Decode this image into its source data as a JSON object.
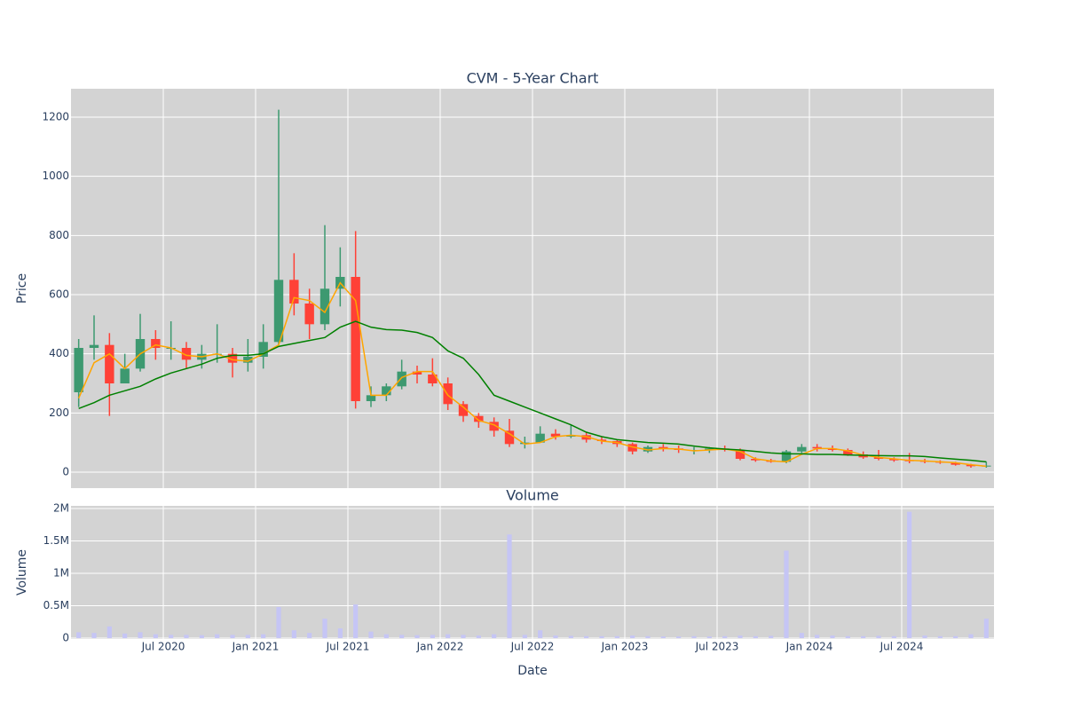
{
  "chart_data": [
    {
      "type": "candlestick",
      "title": "CVM - 5-Year Chart",
      "ylabel": "Price",
      "x": [
        "2020-01",
        "2020-02",
        "2020-03",
        "2020-04",
        "2020-05",
        "2020-06",
        "2020-07",
        "2020-08",
        "2020-09",
        "2020-10",
        "2020-11",
        "2020-12",
        "2021-01",
        "2021-02",
        "2021-03",
        "2021-04",
        "2021-05",
        "2021-06",
        "2021-07",
        "2021-08",
        "2021-09",
        "2021-10",
        "2021-11",
        "2021-12",
        "2022-01",
        "2022-02",
        "2022-03",
        "2022-04",
        "2022-05",
        "2022-06",
        "2022-07",
        "2022-08",
        "2022-09",
        "2022-10",
        "2022-11",
        "2022-12",
        "2023-01",
        "2023-02",
        "2023-03",
        "2023-04",
        "2023-05",
        "2023-06",
        "2023-07",
        "2023-08",
        "2023-09",
        "2023-10",
        "2023-11",
        "2023-12",
        "2024-01",
        "2024-02",
        "2024-03",
        "2024-04",
        "2024-05",
        "2024-06",
        "2024-07",
        "2024-08",
        "2024-09",
        "2024-10",
        "2024-11",
        "2024-12"
      ],
      "open": [
        270,
        420,
        430,
        300,
        350,
        450,
        420,
        420,
        380,
        400,
        400,
        370,
        390,
        440,
        650,
        570,
        500,
        620,
        660,
        240,
        260,
        290,
        340,
        330,
        300,
        230,
        190,
        170,
        140,
        95,
        100,
        130,
        120,
        125,
        110,
        105,
        95,
        70,
        85,
        80,
        75,
        75,
        80,
        75,
        45,
        40,
        35,
        70,
        85,
        80,
        75,
        60,
        50,
        45,
        40,
        38,
        35,
        32,
        25,
        20
      ],
      "high": [
        450,
        530,
        470,
        400,
        535,
        480,
        510,
        440,
        430,
        500,
        420,
        450,
        500,
        1225,
        740,
        620,
        835,
        760,
        815,
        290,
        300,
        380,
        360,
        385,
        320,
        240,
        200,
        185,
        180,
        120,
        155,
        145,
        160,
        135,
        120,
        110,
        100,
        90,
        95,
        90,
        85,
        85,
        90,
        80,
        50,
        45,
        75,
        95,
        95,
        90,
        80,
        70,
        75,
        50,
        65,
        45,
        40,
        35,
        28,
        35
      ],
      "low": [
        220,
        380,
        190,
        300,
        340,
        380,
        380,
        350,
        350,
        370,
        320,
        340,
        350,
        430,
        530,
        450,
        480,
        560,
        215,
        220,
        240,
        280,
        300,
        290,
        210,
        170,
        150,
        120,
        85,
        80,
        100,
        110,
        115,
        100,
        95,
        85,
        60,
        65,
        70,
        65,
        60,
        65,
        70,
        40,
        35,
        32,
        30,
        65,
        70,
        70,
        55,
        45,
        40,
        35,
        30,
        30,
        28,
        22,
        15,
        15
      ],
      "close": [
        420,
        430,
        300,
        350,
        450,
        420,
        420,
        380,
        400,
        400,
        370,
        390,
        440,
        650,
        570,
        500,
        620,
        660,
        240,
        260,
        290,
        340,
        330,
        300,
        230,
        190,
        170,
        140,
        95,
        100,
        130,
        120,
        125,
        110,
        105,
        95,
        70,
        85,
        80,
        75,
        75,
        80,
        75,
        45,
        40,
        35,
        70,
        85,
        80,
        75,
        60,
        50,
        45,
        40,
        38,
        35,
        32,
        25,
        20,
        22
      ],
      "increasing_color": "#3d9970",
      "decreasing_color": "#ff4136",
      "lines": [
        {
          "color": "orange",
          "values": [
            250,
            370,
            400,
            350,
            400,
            430,
            420,
            395,
            390,
            400,
            380,
            375,
            400,
            430,
            590,
            580,
            540,
            640,
            580,
            260,
            260,
            320,
            340,
            340,
            260,
            220,
            175,
            160,
            130,
            95,
            100,
            120,
            125,
            120,
            105,
            100,
            85,
            75,
            80,
            78,
            72,
            75,
            78,
            70,
            45,
            38,
            35,
            60,
            80,
            80,
            72,
            58,
            50,
            45,
            40,
            38,
            35,
            32,
            25,
            20
          ]
        },
        {
          "color": "green",
          "values": [
            215,
            235,
            260,
            275,
            290,
            315,
            335,
            350,
            365,
            385,
            395,
            395,
            400,
            425,
            435,
            445,
            455,
            490,
            510,
            490,
            482,
            480,
            472,
            455,
            410,
            385,
            330,
            260,
            240,
            220,
            200,
            180,
            160,
            135,
            120,
            110,
            105,
            100,
            98,
            95,
            88,
            82,
            78,
            75,
            70,
            65,
            62,
            62,
            60,
            60,
            58,
            57,
            56,
            55,
            55,
            53,
            48,
            44,
            40,
            35
          ]
        }
      ],
      "xlim": [
        "2020-01",
        "2025-01"
      ],
      "ylim": [
        -54,
        1296
      ],
      "yticks": [
        0,
        200,
        400,
        600,
        800,
        1000,
        1200
      ],
      "grid": true
    },
    {
      "type": "bar",
      "title": "Volume",
      "ylabel": "Volume",
      "xlabel": "Date",
      "x": [
        "2020-01",
        "2020-02",
        "2020-03",
        "2020-04",
        "2020-05",
        "2020-06",
        "2020-07",
        "2020-08",
        "2020-09",
        "2020-10",
        "2020-11",
        "2020-12",
        "2021-01",
        "2021-02",
        "2021-03",
        "2021-04",
        "2021-05",
        "2021-06",
        "2021-07",
        "2021-08",
        "2021-09",
        "2021-10",
        "2021-11",
        "2021-12",
        "2022-01",
        "2022-02",
        "2022-03",
        "2022-04",
        "2022-05",
        "2022-06",
        "2022-07",
        "2022-08",
        "2022-09",
        "2022-10",
        "2022-11",
        "2022-12",
        "2023-01",
        "2023-02",
        "2023-03",
        "2023-04",
        "2023-05",
        "2023-06",
        "2023-07",
        "2023-08",
        "2023-09",
        "2023-10",
        "2023-11",
        "2023-12",
        "2024-01",
        "2024-02",
        "2024-03",
        "2024-04",
        "2024-05",
        "2024-06",
        "2024-07",
        "2024-08",
        "2024-09",
        "2024-10",
        "2024-11",
        "2024-12"
      ],
      "values": [
        90000,
        80000,
        180000,
        70000,
        90000,
        60000,
        50000,
        50000,
        45000,
        60000,
        50000,
        50000,
        60000,
        480000,
        120000,
        80000,
        300000,
        150000,
        520000,
        100000,
        60000,
        50000,
        45000,
        50000,
        60000,
        50000,
        40000,
        60000,
        1600000,
        50000,
        120000,
        40000,
        35000,
        30000,
        30000,
        30000,
        40000,
        30000,
        25000,
        25000,
        30000,
        25000,
        30000,
        40000,
        30000,
        35000,
        1350000,
        80000,
        50000,
        40000,
        30000,
        30000,
        35000,
        30000,
        1950000,
        40000,
        30000,
        30000,
        60000,
        300000
      ],
      "color": "#c5c5f5",
      "xlim": [
        "2020-01",
        "2025-01"
      ],
      "ylim": [
        -14000,
        2041000
      ],
      "yticks": [
        0,
        {
          "value": 500000,
          "label": "0.5M"
        },
        {
          "value": 1000000,
          "label": "1M"
        },
        {
          "value": 1500000,
          "label": "1.5M"
        },
        {
          "value": 2000000,
          "label": "2M"
        }
      ],
      "xticks": [
        {
          "value": "2020-07",
          "label": "Jul 2020"
        },
        {
          "value": "2021-01",
          "label": "Jan 2021"
        },
        {
          "value": "2021-07",
          "label": "Jul 2021"
        },
        {
          "value": "2022-01",
          "label": "Jan 2022"
        },
        {
          "value": "2022-07",
          "label": "Jul 2022"
        },
        {
          "value": "2023-01",
          "label": "Jan 2023"
        },
        {
          "value": "2023-07",
          "label": "Jul 2023"
        },
        {
          "value": "2024-01",
          "label": "Jan 2024"
        },
        {
          "value": "2024-07",
          "label": "Jul 2024"
        }
      ],
      "grid": true
    }
  ]
}
